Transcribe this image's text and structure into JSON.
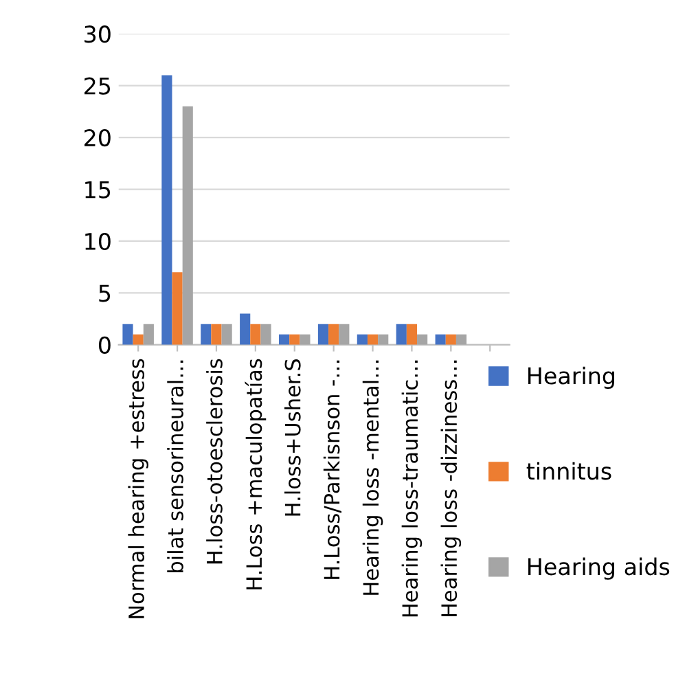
{
  "chart_data": {
    "type": "bar",
    "categories": [
      "Normal hearing +estress",
      "bilat sensorineural…",
      "H.loss-otoesclerosis",
      "H.Loss +maculopatías",
      "H.loss+Usher.S",
      "H.Loss/Parkisnson -…",
      "Hearing loss -mental…",
      "Hearing loss-traumatic…",
      "Hearing loss -dizziness…",
      null
    ],
    "series": [
      {
        "name": "Hearing",
        "color": "#4472c4",
        "values": [
          2,
          26,
          2,
          3,
          1,
          2,
          1,
          2,
          1,
          null
        ]
      },
      {
        "name": "tinnitus",
        "color": "#ed7d31",
        "values": [
          1,
          7,
          2,
          2,
          1,
          2,
          1,
          2,
          1,
          null
        ]
      },
      {
        "name": "Hearing aids",
        "color": "#a5a5a5",
        "values": [
          2,
          23,
          2,
          2,
          1,
          2,
          1,
          1,
          1,
          null
        ]
      }
    ],
    "ylim": [
      0,
      30
    ],
    "yticks": [
      0,
      5,
      10,
      15,
      20,
      25,
      30
    ],
    "grid": "y",
    "legend": "right"
  }
}
